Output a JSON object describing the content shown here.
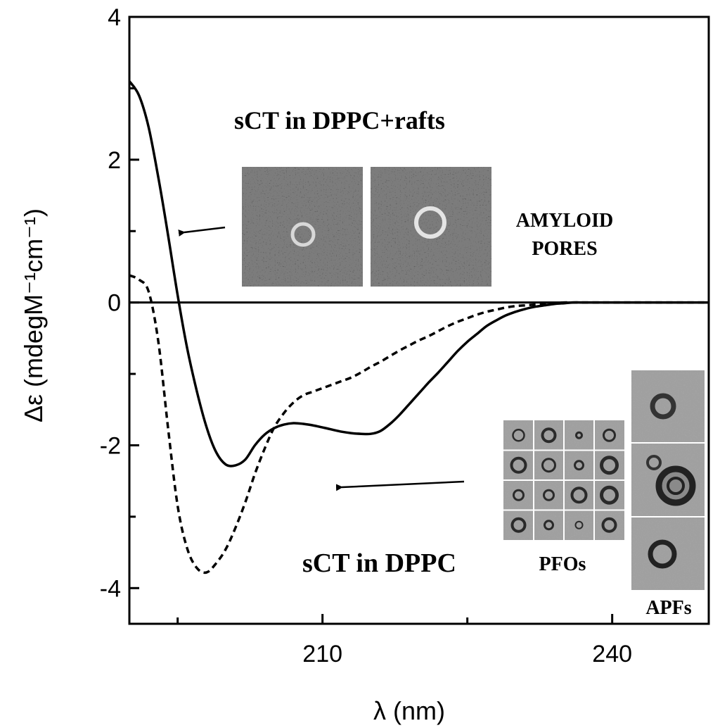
{
  "chart_data": {
    "type": "line",
    "xlabel": "λ (nm)",
    "ylabel": "Δε (mdegM⁻¹cm⁻¹)",
    "xlim": [
      190,
      250
    ],
    "ylim": [
      -4.5,
      4
    ],
    "xticks": [
      210,
      240
    ],
    "xtick_labels": [
      "210",
      "240"
    ],
    "xticks_minor": [
      195,
      225
    ],
    "yticks": [
      4,
      2,
      0,
      -2,
      -4
    ],
    "ytick_labels": [
      "4",
      "2",
      "0",
      "-2",
      "-4"
    ],
    "yticks_minor": [
      3,
      1,
      -1,
      -3
    ],
    "zero_line": true,
    "grid": false,
    "series": [
      {
        "style": "solid",
        "x": [
          190,
          191,
          192,
          193,
          194,
          195,
          196,
          197,
          198,
          199,
          200,
          201,
          202,
          203,
          204,
          205,
          206,
          207,
          208,
          209,
          210,
          211,
          212,
          213,
          214,
          215,
          216,
          217,
          218,
          219,
          220,
          221,
          222,
          223,
          224,
          225,
          226,
          227,
          228,
          229,
          230,
          231,
          232,
          233,
          234,
          235,
          236,
          237,
          238,
          239,
          240,
          241,
          242,
          243,
          244,
          245,
          246,
          247,
          248,
          249,
          250
        ],
        "y": [
          3.1,
          2.9,
          2.45,
          1.75,
          0.95,
          0.1,
          -0.65,
          -1.25,
          -1.75,
          -2.1,
          -2.27,
          -2.28,
          -2.2,
          -2.0,
          -1.85,
          -1.76,
          -1.71,
          -1.69,
          -1.7,
          -1.72,
          -1.75,
          -1.78,
          -1.81,
          -1.83,
          -1.84,
          -1.84,
          -1.8,
          -1.7,
          -1.57,
          -1.42,
          -1.27,
          -1.12,
          -0.98,
          -0.83,
          -0.68,
          -0.55,
          -0.44,
          -0.33,
          -0.25,
          -0.18,
          -0.13,
          -0.09,
          -0.06,
          -0.04,
          -0.02,
          -0.01,
          0,
          0,
          0,
          0,
          0,
          0,
          0,
          0,
          0,
          0,
          0,
          0,
          0,
          0,
          0
        ]
      },
      {
        "style": "dashed",
        "x": [
          190,
          191,
          192,
          193,
          194,
          195,
          196,
          197,
          198,
          199,
          200,
          201,
          202,
          203,
          204,
          205,
          206,
          207,
          208,
          209,
          210,
          211,
          212,
          213,
          214,
          215,
          216,
          217,
          218,
          219,
          220,
          221,
          222,
          223,
          224,
          225,
          226,
          227,
          228,
          229,
          230,
          231,
          232,
          233,
          234,
          235,
          236,
          237,
          238,
          239,
          240,
          241,
          242,
          243,
          244,
          245,
          246,
          247,
          248,
          249,
          250
        ],
        "y": [
          0.38,
          0.32,
          0.15,
          -0.55,
          -1.75,
          -2.85,
          -3.45,
          -3.72,
          -3.78,
          -3.65,
          -3.45,
          -3.15,
          -2.8,
          -2.4,
          -2.05,
          -1.75,
          -1.55,
          -1.4,
          -1.3,
          -1.25,
          -1.2,
          -1.15,
          -1.1,
          -1.05,
          -0.98,
          -0.9,
          -0.83,
          -0.75,
          -0.67,
          -0.6,
          -0.53,
          -0.47,
          -0.4,
          -0.33,
          -0.27,
          -0.22,
          -0.17,
          -0.13,
          -0.1,
          -0.07,
          -0.05,
          -0.04,
          -0.03,
          -0.02,
          -0.01,
          0,
          0,
          0,
          0,
          0,
          0,
          0,
          0,
          0,
          0,
          0,
          0,
          0,
          0,
          0,
          0
        ]
      }
    ],
    "annotations": {
      "rafts_label": "sCT in DPPC+rafts",
      "pores_line1": "AMYLOID",
      "pores_line2": "PORES",
      "dppc_label": "sCT in DPPC",
      "pfos_label": "PFOs",
      "apfs_label": "APFs"
    }
  }
}
